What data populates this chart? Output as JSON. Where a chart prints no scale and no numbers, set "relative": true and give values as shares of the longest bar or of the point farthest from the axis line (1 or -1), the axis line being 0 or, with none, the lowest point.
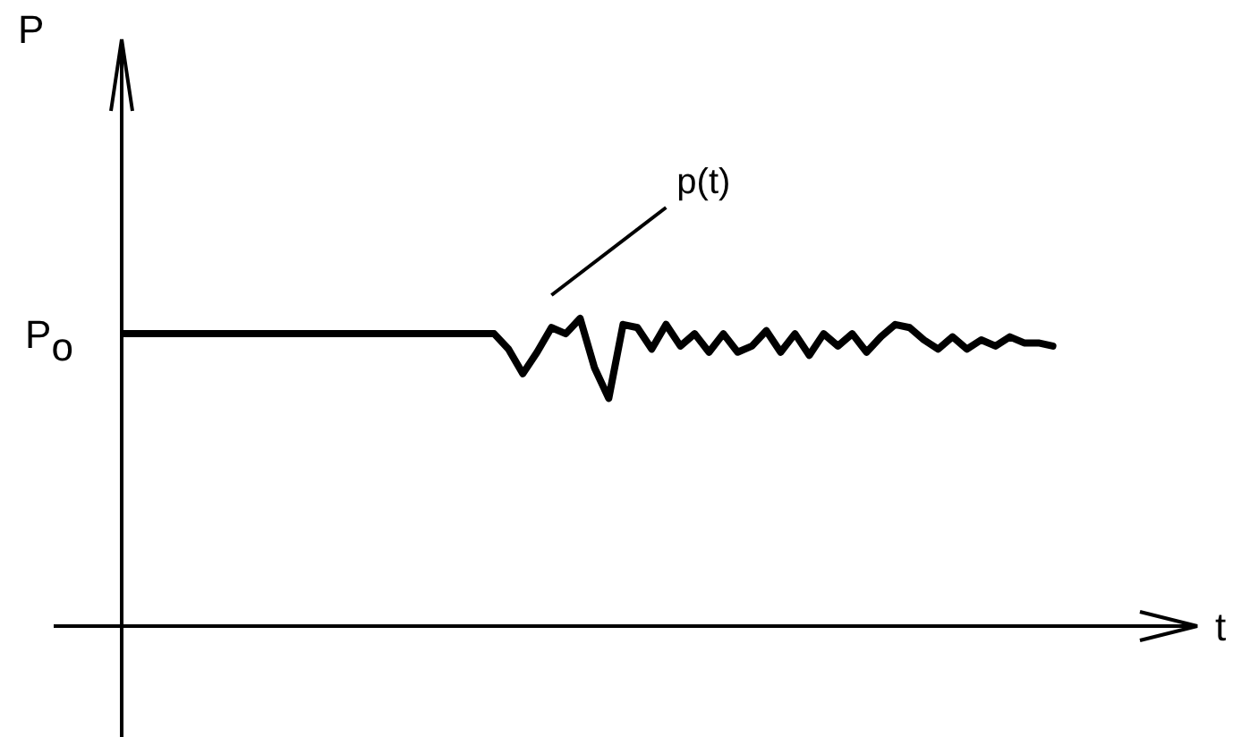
{
  "chart_data": {
    "type": "line",
    "relative": true,
    "xlabel": "t",
    "marker": "none",
    "line_style": "solid",
    "annotations": [
      "P",
      "P$_{o}$"
    ],
    "categories": [
      null,
      null,
      null,
      null,
      null,
      null,
      null,
      null,
      null,
      null,
      null,
      null,
      null,
      null,
      null,
      null,
      null,
      null,
      null,
      null,
      null,
      null,
      null,
      null,
      null,
      null,
      null,
      null,
      null,
      null,
      null,
      null,
      null,
      null,
      null,
      null,
      null,
      null,
      null,
      null,
      null,
      null,
      null,
      null,
      null,
      null,
      null,
      null,
      null,
      null,
      null,
      null,
      null,
      null,
      null,
      null,
      null,
      null,
      null,
      null,
      null,
      null,
      null,
      null,
      null,
      null
    ],
    "series": [
      {
        "name": "p(t)",
        "color": "#000000",
        "values": [
          0.95,
          0.95,
          0.95,
          0.95,
          0.95,
          0.95,
          0.95,
          0.95,
          0.95,
          0.95,
          0.95,
          0.95,
          0.95,
          0.95,
          0.95,
          0.95,
          0.95,
          0.95,
          0.95,
          0.95,
          0.95,
          0.95,
          0.95,
          0.95,
          0.95,
          0.95,
          0.95,
          0.9,
          0.82,
          0.89,
          0.97,
          0.95,
          1,
          0.84,
          0.74,
          0.98,
          0.97,
          0.9,
          0.98,
          0.91,
          0.95,
          0.89,
          0.95,
          0.89,
          0.91,
          0.96,
          0.89,
          0.95,
          0.88,
          0.95,
          0.91,
          0.95,
          0.89,
          0.94,
          0.98,
          0.97,
          0.93,
          0.9,
          0.94,
          0.9,
          0.93,
          0.91,
          0.94,
          0.92,
          0.92,
          0.91
        ]
      }
    ]
  }
}
